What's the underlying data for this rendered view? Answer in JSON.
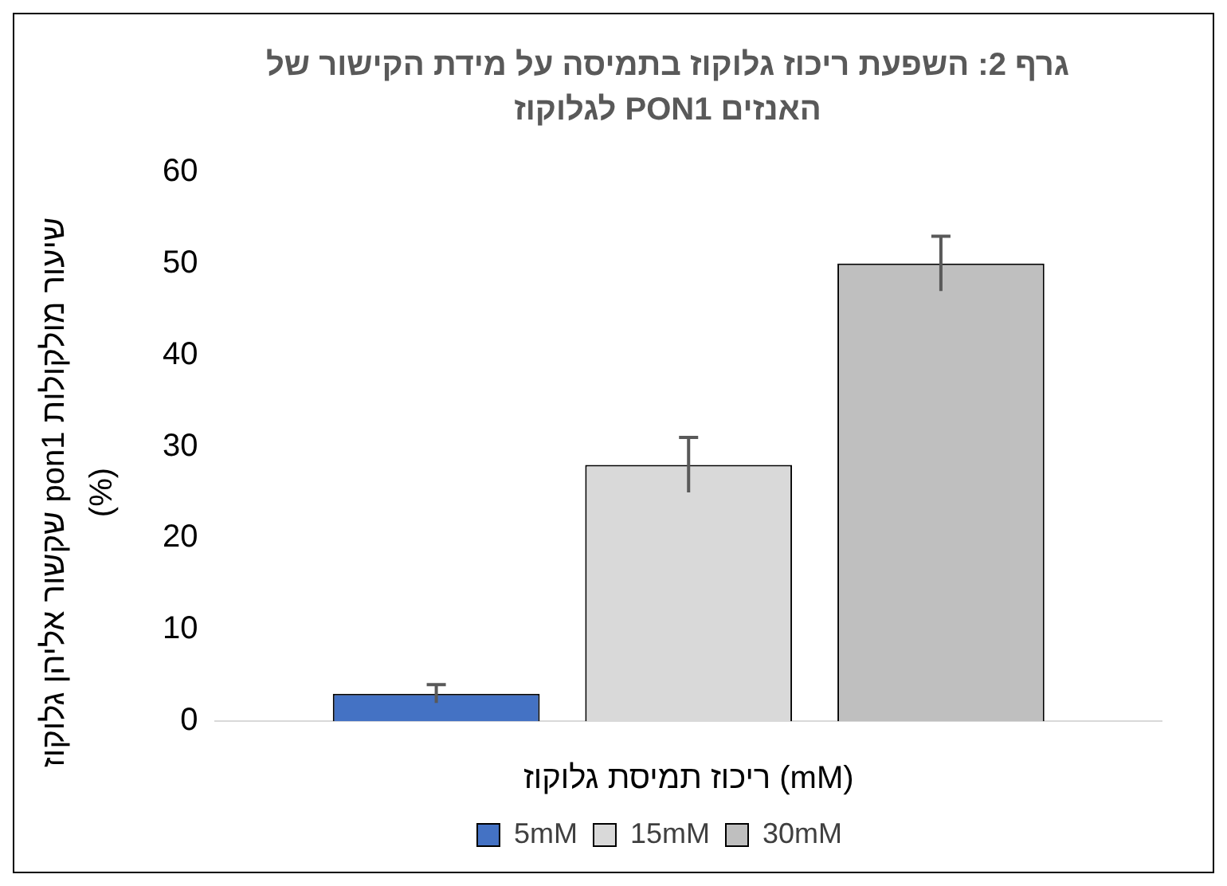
{
  "chart_data": {
    "type": "bar",
    "title": "גרף 2: השפעת ריכוז גלוקוז בתמיסה על מידת הקישור של האנזים PON1 לגלוקוז",
    "xlabel": "ריכוז תמיסת גלוקוז (mM)",
    "ylabel": "שיעור מולקולות pon1 שקשור אליהן גלוקוז (%)",
    "categories": [
      null
    ],
    "series": [
      {
        "name": "5mM",
        "color": "#4472c4",
        "values": [
          3
        ],
        "errors": [
          1
        ]
      },
      {
        "name": "15mM",
        "color": "#d9d9d9",
        "values": [
          28
        ],
        "errors": [
          3
        ]
      },
      {
        "name": "30mM",
        "color": "#bfbfbf",
        "values": [
          50
        ],
        "errors": [
          3
        ]
      }
    ],
    "ylim": [
      0,
      60
    ],
    "yticks": [
      0,
      10,
      20,
      30,
      40,
      50,
      60
    ],
    "grid": false,
    "legend": "bottom"
  }
}
